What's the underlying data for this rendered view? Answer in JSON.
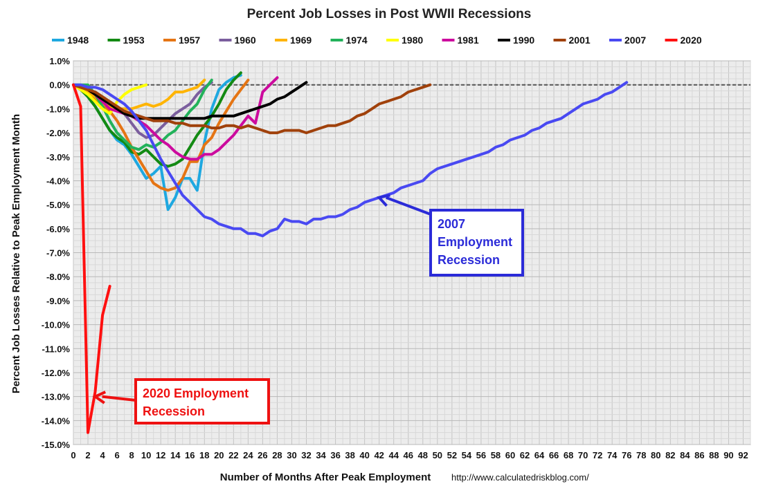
{
  "chart_data": {
    "type": "line",
    "title": "Percent Job Losses in Post WWII Recessions",
    "xlabel": "Number of Months After Peak Employment",
    "ylabel": "Percent Job Losses Relative to Peak Employment Month",
    "source_text": "http://www.calculatedriskblog.com/",
    "xlim": [
      0,
      93
    ],
    "ylim": [
      -15.0,
      1.0
    ],
    "x_ticks": [
      0,
      2,
      4,
      6,
      8,
      10,
      12,
      14,
      16,
      18,
      20,
      22,
      24,
      26,
      28,
      30,
      32,
      34,
      36,
      38,
      40,
      42,
      44,
      46,
      48,
      50,
      52,
      54,
      56,
      58,
      60,
      62,
      64,
      66,
      68,
      70,
      72,
      74,
      76,
      78,
      80,
      82,
      84,
      86,
      88,
      90,
      92
    ],
    "y_ticks": [
      1.0,
      0.0,
      -1.0,
      -2.0,
      -3.0,
      -4.0,
      -5.0,
      -6.0,
      -7.0,
      -8.0,
      -9.0,
      -10.0,
      -11.0,
      -12.0,
      -13.0,
      -14.0,
      -15.0
    ],
    "y_tick_labels": [
      "1.0%",
      "0.0%",
      "-1.0%",
      "-2.0%",
      "-3.0%",
      "-4.0%",
      "-5.0%",
      "-6.0%",
      "-7.0%",
      "-8.0%",
      "-9.0%",
      "-10.0%",
      "-11.0%",
      "-12.0%",
      "-13.0%",
      "-14.0%",
      "-15.0%"
    ],
    "grid": true,
    "legend_position": "top",
    "series": [
      {
        "name": "1948",
        "color": "#1ea8e0",
        "values": [
          0,
          -0.1,
          -0.5,
          -0.9,
          -1.4,
          -1.9,
          -2.3,
          -2.5,
          -2.9,
          -3.4,
          -3.9,
          -3.7,
          -3.4,
          -5.2,
          -4.7,
          -3.9,
          -3.9,
          -4.4,
          -2.4,
          -1.0,
          -0.2,
          0.1,
          0.3,
          0.4
        ]
      },
      {
        "name": "1953",
        "color": "#138a13",
        "values": [
          0,
          -0.2,
          -0.5,
          -0.9,
          -1.4,
          -1.9,
          -2.2,
          -2.4,
          -2.8,
          -2.9,
          -2.7,
          -3.0,
          -3.3,
          -3.4,
          -3.3,
          -3.1,
          -2.6,
          -2.1,
          -1.7,
          -1.3,
          -0.8,
          -0.2,
          0.2,
          0.5
        ]
      },
      {
        "name": "1957",
        "color": "#e57514",
        "values": [
          0,
          -0.2,
          -0.3,
          -0.6,
          -0.8,
          -1.1,
          -1.5,
          -2.0,
          -2.6,
          -3.1,
          -3.6,
          -4.1,
          -4.3,
          -4.4,
          -4.3,
          -3.9,
          -3.2,
          -3.2,
          -2.5,
          -2.2,
          -1.6,
          -1.1,
          -0.6,
          -0.2,
          0.2
        ]
      },
      {
        "name": "1960",
        "color": "#7b5e9e",
        "values": [
          0,
          -0.1,
          -0.2,
          -0.3,
          -0.5,
          -0.7,
          -0.9,
          -1.2,
          -1.6,
          -2.0,
          -2.2,
          -2.1,
          -1.8,
          -1.5,
          -1.2,
          -1.0,
          -0.8,
          -0.4,
          -0.1,
          0.1
        ]
      },
      {
        "name": "1969",
        "color": "#ffb400",
        "values": [
          0,
          -0.1,
          -0.3,
          -0.5,
          -0.8,
          -0.9,
          -1.0,
          -1.0,
          -1.0,
          -0.9,
          -0.8,
          -0.9,
          -0.8,
          -0.6,
          -0.3,
          -0.3,
          -0.2,
          -0.1,
          0.2
        ]
      },
      {
        "name": "1974",
        "color": "#22b25a",
        "values": [
          0,
          0.0,
          0.0,
          -0.4,
          -0.9,
          -1.5,
          -2.0,
          -2.3,
          -2.6,
          -2.7,
          -2.5,
          -2.6,
          -2.4,
          -2.1,
          -1.9,
          -1.5,
          -1.1,
          -0.8,
          -0.2,
          0.2
        ]
      },
      {
        "name": "1980",
        "color": "#ffff00",
        "values": [
          0,
          -0.2,
          -0.4,
          -0.7,
          -1.0,
          -1.2,
          -0.7,
          -0.4,
          -0.2,
          -0.1,
          0.0
        ]
      },
      {
        "name": "1981",
        "color": "#cc0b9e",
        "values": [
          0,
          -0.1,
          -0.2,
          -0.4,
          -0.7,
          -1.0,
          -1.1,
          -1.2,
          -1.3,
          -1.5,
          -1.7,
          -2.0,
          -2.3,
          -2.5,
          -2.8,
          -3.0,
          -3.1,
          -3.1,
          -2.9,
          -2.9,
          -2.7,
          -2.4,
          -2.1,
          -1.7,
          -1.3,
          -1.6,
          -0.3,
          0.0,
          0.3
        ]
      },
      {
        "name": "1990",
        "color": "#000000",
        "values": [
          0,
          -0.1,
          -0.2,
          -0.4,
          -0.6,
          -0.8,
          -1.0,
          -1.2,
          -1.3,
          -1.4,
          -1.4,
          -1.4,
          -1.4,
          -1.4,
          -1.4,
          -1.4,
          -1.4,
          -1.4,
          -1.4,
          -1.3,
          -1.3,
          -1.3,
          -1.3,
          -1.2,
          -1.1,
          -1.0,
          -0.9,
          -0.8,
          -0.6,
          -0.5,
          -0.3,
          -0.1,
          0.1
        ]
      },
      {
        "name": "2001",
        "color": "#a0410b",
        "values": [
          0,
          -0.1,
          -0.2,
          -0.3,
          -0.5,
          -0.7,
          -0.9,
          -1.1,
          -1.2,
          -1.3,
          -1.4,
          -1.5,
          -1.5,
          -1.5,
          -1.6,
          -1.6,
          -1.7,
          -1.7,
          -1.7,
          -1.8,
          -1.8,
          -1.7,
          -1.7,
          -1.8,
          -1.7,
          -1.8,
          -1.9,
          -2.0,
          -2.0,
          -1.9,
          -1.9,
          -1.9,
          -2.0,
          -1.9,
          -1.8,
          -1.7,
          -1.7,
          -1.6,
          -1.5,
          -1.3,
          -1.2,
          -1.0,
          -0.8,
          -0.7,
          -0.6,
          -0.5,
          -0.3,
          -0.2,
          -0.1,
          0.0
        ]
      },
      {
        "name": "2007",
        "color": "#4949f2",
        "values": [
          0,
          0.0,
          -0.1,
          -0.1,
          -0.2,
          -0.4,
          -0.6,
          -0.8,
          -1.1,
          -1.5,
          -1.9,
          -2.5,
          -3.1,
          -3.6,
          -4.1,
          -4.6,
          -4.9,
          -5.2,
          -5.5,
          -5.6,
          -5.8,
          -5.9,
          -6.0,
          -6.0,
          -6.2,
          -6.2,
          -6.3,
          -6.1,
          -6.0,
          -5.6,
          -5.7,
          -5.7,
          -5.8,
          -5.6,
          -5.6,
          -5.5,
          -5.5,
          -5.4,
          -5.2,
          -5.1,
          -4.9,
          -4.8,
          -4.7,
          -4.6,
          -4.5,
          -4.3,
          -4.2,
          -4.1,
          -4.0,
          -3.7,
          -3.5,
          -3.4,
          -3.3,
          -3.2,
          -3.1,
          -3.0,
          -2.9,
          -2.8,
          -2.6,
          -2.5,
          -2.3,
          -2.2,
          -2.1,
          -1.9,
          -1.8,
          -1.6,
          -1.5,
          -1.4,
          -1.2,
          -1.0,
          -0.8,
          -0.7,
          -0.6,
          -0.4,
          -0.3,
          -0.1,
          0.1
        ]
      },
      {
        "name": "2020",
        "color": "#ff1010",
        "values": [
          0,
          -0.9,
          -14.5,
          -12.8,
          -9.6,
          -8.4
        ]
      }
    ],
    "annotations": [
      {
        "text_lines": [
          "2007",
          "Employment",
          "Recession"
        ],
        "color": "#2b2bd8",
        "arrow_to": [
          42,
          -4.7
        ]
      },
      {
        "text_lines": [
          "2020 Employment",
          "Recession"
        ],
        "color": "#ee1111",
        "arrow_to": [
          3,
          -13.0
        ]
      }
    ]
  }
}
